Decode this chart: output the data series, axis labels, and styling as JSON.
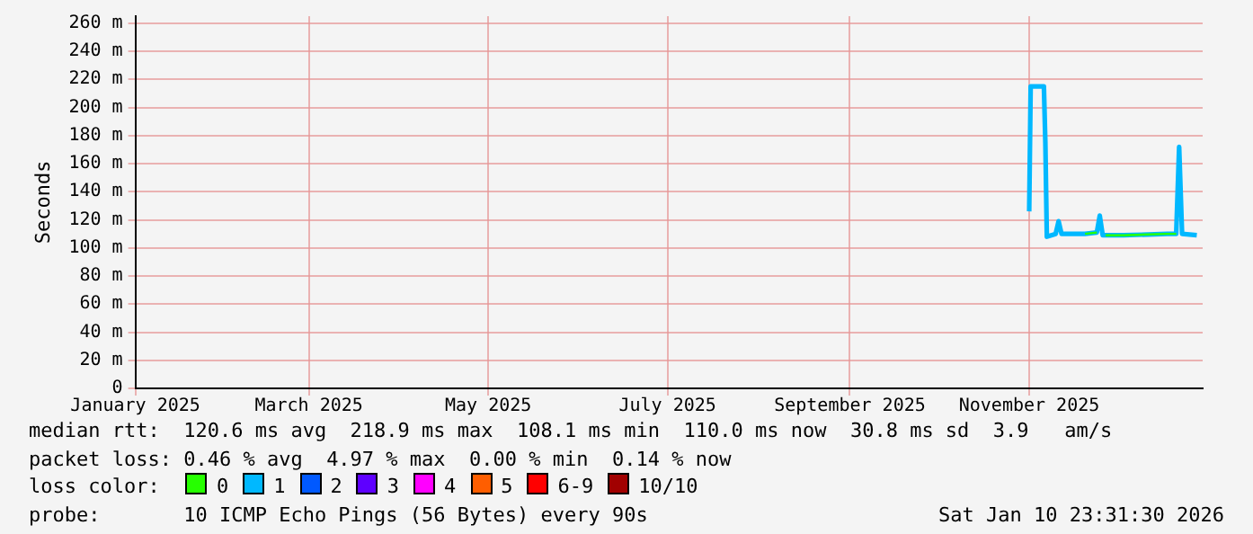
{
  "chart_data": {
    "type": "line",
    "ylabel": "Seconds",
    "legend_title": "loss color:",
    "legend": "bottom",
    "grid": true,
    "marker": "none",
    "line_style": "solid",
    "x": [
      "2025-11-01T00:00",
      "2025-11-01T12:00",
      "2025-11-06T00:00",
      "2025-11-06T12:00",
      "2025-11-07",
      "2025-11-10",
      "2025-11-11",
      "2025-11-12",
      "2025-11-20",
      "2025-11-24",
      "2025-11-25",
      "2025-11-26",
      "2025-11-27",
      "2025-12-03",
      "2025-12-18",
      "2025-12-21",
      "2025-12-22",
      "2025-12-23",
      "2025-12-28"
    ],
    "xlim": [
      "2025-01-01",
      "2025-12-30"
    ],
    "xticks": [
      {
        "value": "2025-01-01",
        "label": "January 2025"
      },
      {
        "value": "2025-03-01",
        "label": "March 2025"
      },
      {
        "value": "2025-05-01",
        "label": "May 2025"
      },
      {
        "value": "2025-07-01",
        "label": "July 2025"
      },
      {
        "value": "2025-09-01",
        "label": "September 2025"
      },
      {
        "value": "2025-11-01",
        "label": "November 2025"
      }
    ],
    "ylim": [
      0,
      265
    ],
    "yticks": [
      0,
      {
        "value": 20,
        "label": "20 m"
      },
      {
        "value": 40,
        "label": "40 m"
      },
      {
        "value": 60,
        "label": "60 m"
      },
      {
        "value": 80,
        "label": "80 m"
      },
      {
        "value": 100,
        "label": "100 m"
      },
      {
        "value": 120,
        "label": "120 m"
      },
      {
        "value": 140,
        "label": "140 m"
      },
      {
        "value": 160,
        "label": "160 m"
      },
      {
        "value": 180,
        "label": "180 m"
      },
      {
        "value": 200,
        "label": "200 m"
      },
      {
        "value": 220,
        "label": "220 m"
      },
      {
        "value": 240,
        "label": "240 m"
      },
      {
        "value": 260,
        "label": "260 m"
      }
    ],
    "series": [
      {
        "name": "0",
        "color": "#26ff00",
        "values": [
          null,
          null,
          null,
          null,
          null,
          null,
          null,
          null,
          110,
          111,
          null,
          null,
          109,
          109,
          110,
          110,
          null,
          null,
          null
        ]
      },
      {
        "name": "1",
        "color": "#00b8ff",
        "values": [
          126,
          215,
          215,
          175,
          108,
          110,
          119,
          110,
          110,
          111,
          123,
          109,
          109,
          109,
          110,
          110,
          172,
          110,
          109
        ]
      },
      {
        "name": "2",
        "color": "#0059ff",
        "values": [
          null,
          null,
          null,
          null,
          null,
          null,
          null,
          null,
          null,
          null,
          null,
          null,
          null,
          null,
          null,
          null,
          null,
          null,
          null
        ]
      },
      {
        "name": "3",
        "color": "#5e00ff",
        "values": [
          null,
          null,
          null,
          null,
          null,
          null,
          null,
          null,
          null,
          null,
          null,
          null,
          null,
          null,
          null,
          null,
          null,
          null,
          null
        ]
      },
      {
        "name": "4",
        "color": "#ff00ff",
        "values": [
          null,
          null,
          null,
          null,
          null,
          null,
          null,
          null,
          null,
          null,
          null,
          null,
          null,
          null,
          null,
          null,
          null,
          null,
          null
        ]
      },
      {
        "name": "5",
        "color": "#ff5e00",
        "values": [
          null,
          null,
          null,
          null,
          null,
          null,
          null,
          null,
          null,
          null,
          null,
          null,
          null,
          null,
          null,
          null,
          null,
          null,
          null
        ]
      },
      {
        "name": "6-9",
        "color": "#ff0000",
        "values": [
          null,
          null,
          null,
          null,
          null,
          null,
          null,
          null,
          null,
          null,
          null,
          null,
          null,
          null,
          null,
          null,
          null,
          null,
          null
        ]
      },
      {
        "name": "10/10",
        "color": "#a10000",
        "values": [
          null,
          null,
          null,
          null,
          null,
          null,
          null,
          null,
          null,
          null,
          null,
          null,
          null,
          null,
          null,
          null,
          null,
          null,
          null
        ]
      }
    ],
    "annotations": [
      "median rtt:  120.6 ms avg  218.9 ms max  108.1 ms min  110.0 ms now  30.8 ms sd  3.9   am/s",
      "packet loss: 0.46 % avg  4.97 % max  0.00 % min  0.14 % now",
      "probe:       10 ICMP Echo Pings (56 Bytes) every 90s",
      "Sat Jan 10 23:31:30 2026"
    ]
  }
}
